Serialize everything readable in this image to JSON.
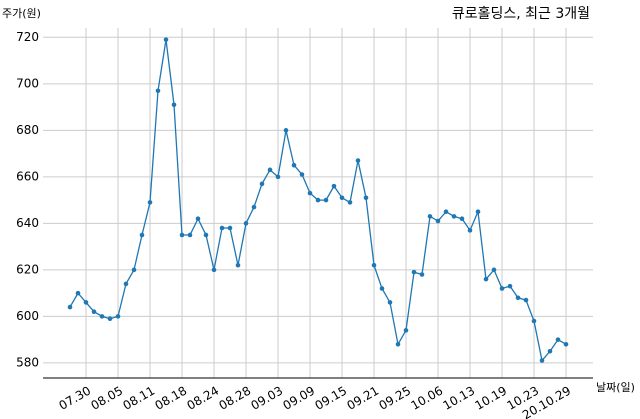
{
  "chart_data": {
    "type": "line",
    "title": "큐로홀딩스, 최근 3개월",
    "y_label": "주가(원)",
    "x_label": "날짜(일)",
    "categories": [
      null,
      null,
      "07.30",
      null,
      null,
      null,
      "08.05",
      null,
      null,
      null,
      "08.11",
      null,
      null,
      null,
      "08.18",
      null,
      null,
      null,
      "08.24",
      null,
      null,
      null,
      "08.28",
      null,
      null,
      null,
      "09.03",
      null,
      null,
      null,
      "09.09",
      null,
      null,
      null,
      "09.15",
      null,
      null,
      null,
      "09.21",
      null,
      null,
      null,
      "09.25",
      null,
      null,
      null,
      "10.06",
      null,
      null,
      null,
      "10.13",
      null,
      null,
      null,
      "10.19",
      null,
      null,
      null,
      "10.23",
      null,
      null,
      null,
      "20.10.29"
    ],
    "series": [
      {
        "color": "#1f77b4",
        "values": [
          604,
          610,
          606,
          602,
          600,
          599,
          600,
          614,
          620,
          635,
          649,
          697,
          719,
          691,
          635,
          635,
          642,
          635,
          620,
          638,
          638,
          622,
          640,
          647,
          657,
          663,
          660,
          680,
          665,
          661,
          653,
          650,
          650,
          656,
          651,
          649,
          667,
          651,
          622,
          612,
          606,
          588,
          594,
          619,
          618,
          643,
          641,
          645,
          643,
          642,
          637,
          645,
          616,
          620,
          612,
          613,
          608,
          607,
          598,
          581,
          585,
          590,
          588
        ]
      }
    ],
    "ylim": [
      573.5,
      724
    ],
    "yticks": [
      580,
      600,
      620,
      640,
      660,
      680,
      700,
      720
    ],
    "grid": true
  }
}
